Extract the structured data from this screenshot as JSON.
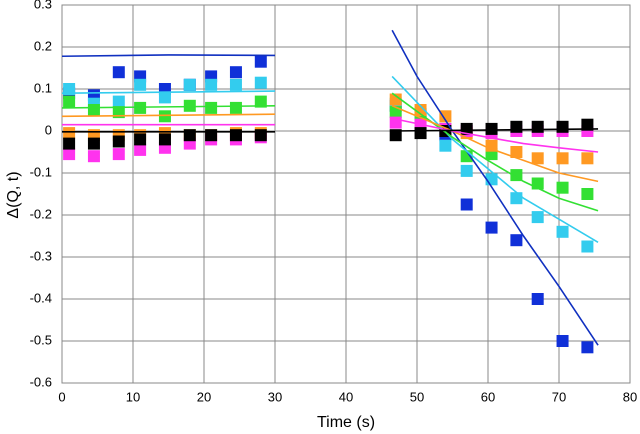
{
  "chart_data": {
    "type": "scatter",
    "xlabel": "Time (s)",
    "ylabel": "Δ(Q, t)",
    "xlim": [
      0,
      80
    ],
    "xticks": [
      0,
      10,
      20,
      30,
      40,
      50,
      60,
      70,
      80
    ],
    "ylim": [
      -0.6,
      0.3
    ],
    "yticks": [
      0.3,
      0.2,
      0.1,
      0,
      -0.1,
      -0.2,
      -0.3,
      -0.4,
      -0.5,
      -0.6
    ],
    "grid": true,
    "series": [
      {
        "type": "scatter",
        "color": "#1030d8",
        "x": [
          1,
          4.5,
          8,
          11,
          14.5,
          18,
          21,
          24.5,
          28,
          47,
          50.5,
          54,
          57,
          60.5,
          64,
          67,
          70.5,
          74
        ],
        "values": [
          0.09,
          0.085,
          0.14,
          0.13,
          0.1,
          0.11,
          0.13,
          0.14,
          0.165,
          0.06,
          0.04,
          -0.01,
          -0.175,
          -0.23,
          -0.26,
          -0.4,
          -0.5,
          -0.515
        ]
      },
      {
        "type": "scatter",
        "color": "#33ccee",
        "x": [
          1,
          4.5,
          8,
          11,
          14.5,
          18,
          21,
          24.5,
          28,
          47,
          50.5,
          54,
          57,
          60.5,
          64,
          67,
          70.5,
          74
        ],
        "values": [
          0.1,
          0.065,
          0.07,
          0.11,
          0.08,
          0.11,
          0.11,
          0.11,
          0.115,
          0.065,
          0.04,
          -0.035,
          -0.095,
          -0.115,
          -0.16,
          -0.205,
          -0.24,
          -0.275
        ]
      },
      {
        "type": "scatter",
        "color": "#33e033",
        "x": [
          1,
          4.5,
          8,
          11,
          14.5,
          18,
          21,
          24.5,
          28,
          47,
          50.5,
          54,
          57,
          60.5,
          64,
          67,
          70.5,
          74
        ],
        "values": [
          0.07,
          0.05,
          0.045,
          0.055,
          0.035,
          0.06,
          0.055,
          0.055,
          0.07,
          0.045,
          0.035,
          0.005,
          -0.06,
          -0.055,
          -0.105,
          -0.125,
          -0.135,
          -0.15
        ]
      },
      {
        "type": "scatter",
        "color": "#ff9922",
        "x": [
          1,
          4.5,
          8,
          11,
          14.5,
          18,
          21,
          24.5,
          28,
          47,
          50.5,
          54,
          57,
          60.5,
          64,
          67,
          70.5,
          74
        ],
        "values": [
          -0.005,
          -0.01,
          -0.01,
          -0.01,
          -0.005,
          -0.01,
          -0.01,
          -0.005,
          -0.005,
          0.075,
          0.05,
          0.035,
          -0.005,
          -0.035,
          -0.05,
          -0.065,
          -0.065,
          -0.065
        ]
      },
      {
        "type": "scatter",
        "color": "#ff33ee",
        "x": [
          1,
          4.5,
          8,
          11,
          14.5,
          18,
          21,
          24.5,
          28,
          47,
          50.5,
          54,
          57,
          60.5,
          64,
          67,
          70.5,
          74
        ],
        "values": [
          -0.055,
          -0.06,
          -0.055,
          -0.045,
          -0.04,
          -0.03,
          -0.02,
          -0.02,
          -0.015,
          0.02,
          0.015,
          0.005,
          0,
          -0.005,
          0,
          0,
          0,
          0
        ]
      },
      {
        "type": "scatter",
        "color": "#000000",
        "x": [
          1,
          4.5,
          8,
          11,
          14.5,
          18,
          21,
          24.5,
          28,
          47,
          50.5,
          54,
          57,
          60.5,
          64,
          67,
          70.5,
          74
        ],
        "values": [
          -0.03,
          -0.03,
          -0.025,
          -0.02,
          -0.02,
          -0.01,
          -0.01,
          -0.01,
          -0.01,
          -0.01,
          -0.005,
          0,
          0.005,
          0.005,
          0.01,
          0.01,
          0.01,
          0.015
        ]
      },
      {
        "type": "line",
        "color": "#1030c0",
        "x": [
          0,
          15,
          30,
          null,
          46.5,
          50,
          55,
          60,
          65,
          70,
          75.5
        ],
        "values": [
          0.178,
          0.181,
          0.18,
          null,
          0.24,
          0.13,
          0,
          -0.12,
          -0.25,
          -0.37,
          -0.51
        ]
      },
      {
        "type": "line",
        "color": "#33ccee",
        "x": [
          0,
          30,
          null,
          46.5,
          55,
          60,
          65,
          70,
          75.5
        ],
        "values": [
          0.09,
          0.095,
          null,
          0.13,
          -0.02,
          -0.09,
          -0.16,
          -0.21,
          -0.265
        ]
      },
      {
        "type": "line",
        "color": "#33e033",
        "x": [
          0,
          30,
          null,
          46.5,
          55,
          60,
          65,
          70,
          75.5
        ],
        "values": [
          0.055,
          0.06,
          null,
          0.09,
          -0.015,
          -0.07,
          -0.12,
          -0.16,
          -0.19
        ]
      },
      {
        "type": "line",
        "color": "#ff9922",
        "x": [
          0,
          30,
          null,
          46.5,
          55,
          60,
          65,
          70,
          75.5
        ],
        "values": [
          0.035,
          0.04,
          null,
          0.06,
          0,
          -0.04,
          -0.07,
          -0.1,
          -0.12
        ]
      },
      {
        "type": "line",
        "color": "#ff33ee",
        "x": [
          0,
          30,
          null,
          46.5,
          55,
          60,
          65,
          70,
          75.5
        ],
        "values": [
          0.015,
          0.015,
          null,
          0.03,
          0,
          -0.015,
          -0.03,
          -0.04,
          -0.05
        ]
      },
      {
        "type": "line",
        "color": "#000000",
        "x": [
          0,
          30,
          null,
          46.5,
          75.5
        ],
        "values": [
          -0.002,
          -0.002,
          null,
          0,
          0.005
        ]
      }
    ]
  }
}
